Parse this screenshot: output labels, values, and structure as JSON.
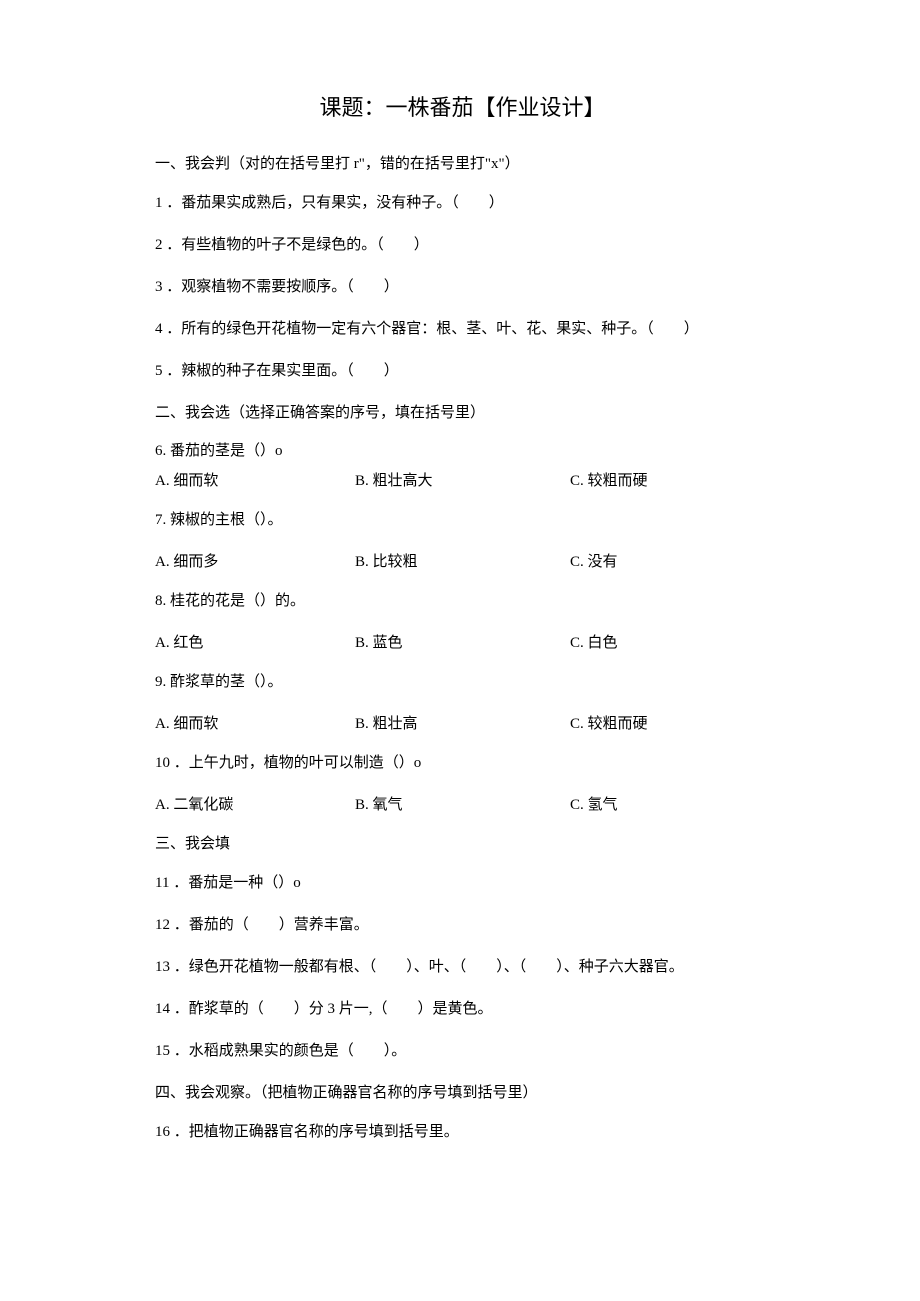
{
  "title": "课题：一株番茄【作业设计】",
  "section1": {
    "header": "一、我会判（对的在括号里打 r\"，错的在括号里打\"x\"）",
    "q1": "1 ．番茄果实成熟后，只有果实，没有种子。（　　）",
    "q2": "2 ．有些植物的叶子不是绿色的。（　　）",
    "q3": "3 ．观察植物不需要按顺序。（　　）",
    "q4": "4 ．所有的绿色开花植物一定有六个器官：根、茎、叶、花、果实、种子。（　　）",
    "q5": "5 ．辣椒的种子在果实里面。（　　）"
  },
  "section2": {
    "header": "二、我会选（选择正确答案的序号，填在括号里）",
    "q6": {
      "text": "6. 番茄的茎是（）o",
      "a": "A. 细而软",
      "b": "B. 粗壮高大",
      "c": "C. 较粗而硬"
    },
    "q7": {
      "text": "7. 辣椒的主根（）。",
      "a": "A. 细而多",
      "b": "B. 比较粗",
      "c": "C. 没有"
    },
    "q8": {
      "text": "8. 桂花的花是（）的。",
      "a": "A. 红色",
      "b": "B. 蓝色",
      "c": "C. 白色"
    },
    "q9": {
      "text": "9. 酢浆草的茎（）。",
      "a": "A. 细而软",
      "b": "B. 粗壮高",
      "c": "C. 较粗而硬"
    },
    "q10": {
      "text": "10 ．上午九时，植物的叶可以制造（）o",
      "a": "A. 二氧化碳",
      "b": "B. 氧气",
      "c": "C. 氢气"
    }
  },
  "section3": {
    "header": "三、我会填",
    "q11": "11 ．番茄是一种（）o",
    "q12": "12 ．番茄的（　　）营养丰富。",
    "q13": "13 ．绿色开花植物一般都有根、（　　）、叶、（　　）、（　　）、种子六大器官。",
    "q14": "14 ．酢浆草的（　　）分 3 片一,（　　）是黄色。",
    "q15": "15 ．水稻成熟果实的颜色是（　　）。"
  },
  "section4": {
    "header": "四、我会观察。（把植物正确器官名称的序号填到括号里）",
    "q16": "16 ．把植物正确器官名称的序号填到括号里。"
  }
}
